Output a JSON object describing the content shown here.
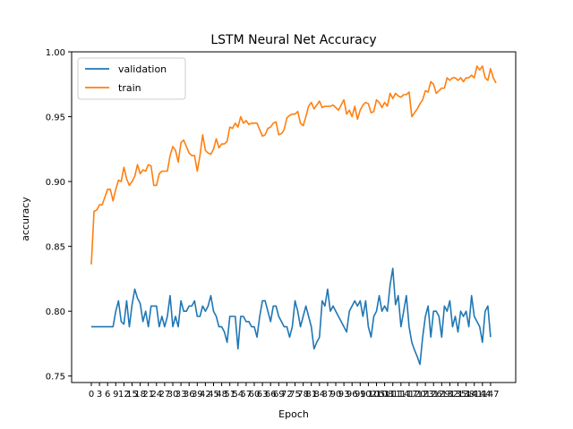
{
  "chart_data": {
    "type": "line",
    "title": "LSTM Neural Net Accuracy",
    "xlabel": "Epoch",
    "ylabel": "accuracy",
    "ylim": [
      0.745,
      1.0
    ],
    "yticks": [
      "0.75",
      "0.80",
      "0.85",
      "0.90",
      "0.95",
      "1.00"
    ],
    "ytick_values": [
      0.75,
      0.8,
      0.85,
      0.9,
      0.95,
      1.0
    ],
    "x_start": 0,
    "x_end": 149,
    "x_tick_step": 3,
    "legend": {
      "position": "top-left"
    },
    "grid": false,
    "series": [
      {
        "name": "validation",
        "color": "#1f77b4",
        "values": [
          0.788,
          0.788,
          0.788,
          0.788,
          0.788,
          0.788,
          0.788,
          0.788,
          0.788,
          0.8,
          0.808,
          0.792,
          0.79,
          0.808,
          0.788,
          0.805,
          0.817,
          0.81,
          0.806,
          0.792,
          0.8,
          0.788,
          0.804,
          0.804,
          0.804,
          0.788,
          0.796,
          0.788,
          0.796,
          0.812,
          0.788,
          0.796,
          0.788,
          0.808,
          0.8,
          0.8,
          0.804,
          0.804,
          0.808,
          0.796,
          0.796,
          0.804,
          0.8,
          0.804,
          0.812,
          0.8,
          0.796,
          0.788,
          0.788,
          0.784,
          0.776,
          0.796,
          0.796,
          0.796,
          0.771,
          0.796,
          0.796,
          0.792,
          0.792,
          0.788,
          0.788,
          0.78,
          0.796,
          0.808,
          0.808,
          0.8,
          0.792,
          0.804,
          0.804,
          0.796,
          0.792,
          0.788,
          0.788,
          0.78,
          0.788,
          0.808,
          0.8,
          0.788,
          0.796,
          0.804,
          0.796,
          0.788,
          0.771,
          0.776,
          0.78,
          0.808,
          0.804,
          0.817,
          0.8,
          0.804,
          0.8,
          0.796,
          0.792,
          0.788,
          0.784,
          0.8,
          0.804,
          0.808,
          0.804,
          0.808,
          0.796,
          0.808,
          0.788,
          0.78,
          0.796,
          0.8,
          0.812,
          0.8,
          0.804,
          0.8,
          0.82,
          0.833,
          0.805,
          0.812,
          0.788,
          0.8,
          0.812,
          0.788,
          0.776,
          0.77,
          0.765,
          0.759,
          0.78,
          0.796,
          0.804,
          0.78,
          0.8,
          0.8,
          0.796,
          0.78,
          0.804,
          0.8,
          0.808,
          0.788,
          0.796,
          0.784,
          0.8,
          0.796,
          0.8,
          0.788,
          0.812,
          0.796,
          0.792,
          0.788,
          0.776,
          0.8,
          0.804,
          0.78
        ],
        "comment_trim": "validation trimmed to match the 150 train points in render script"
      },
      {
        "name": "train",
        "color": "#ff7f0e",
        "values": [
          0.836,
          0.877,
          0.878,
          0.882,
          0.882,
          0.888,
          0.894,
          0.894,
          0.885,
          0.894,
          0.901,
          0.9,
          0.911,
          0.902,
          0.897,
          0.9,
          0.904,
          0.913,
          0.906,
          0.909,
          0.908,
          0.913,
          0.912,
          0.897,
          0.897,
          0.906,
          0.908,
          0.908,
          0.908,
          0.92,
          0.927,
          0.924,
          0.915,
          0.93,
          0.932,
          0.927,
          0.922,
          0.92,
          0.92,
          0.908,
          0.92,
          0.936,
          0.924,
          0.922,
          0.921,
          0.925,
          0.933,
          0.926,
          0.929,
          0.929,
          0.931,
          0.942,
          0.941,
          0.945,
          0.942,
          0.95,
          0.945,
          0.947,
          0.944,
          0.945,
          0.945,
          0.945,
          0.94,
          0.935,
          0.936,
          0.941,
          0.942,
          0.945,
          0.946,
          0.936,
          0.937,
          0.94,
          0.949,
          0.951,
          0.952,
          0.952,
          0.954,
          0.945,
          0.943,
          0.95,
          0.958,
          0.961,
          0.956,
          0.959,
          0.962,
          0.957,
          0.958,
          0.958,
          0.958,
          0.959,
          0.957,
          0.955,
          0.959,
          0.963,
          0.952,
          0.955,
          0.95,
          0.958,
          0.948,
          0.955,
          0.959,
          0.961,
          0.96,
          0.953,
          0.954,
          0.963,
          0.961,
          0.957,
          0.961,
          0.958,
          0.968,
          0.964,
          0.968,
          0.966,
          0.965,
          0.967,
          0.967,
          0.969,
          0.95,
          0.953,
          0.956,
          0.96,
          0.963,
          0.97,
          0.969,
          0.977,
          0.975,
          0.968,
          0.97,
          0.972,
          0.972,
          0.98,
          0.978,
          0.98,
          0.98,
          0.978,
          0.98,
          0.977,
          0.98,
          0.98,
          0.982,
          0.98,
          0.989,
          0.986,
          0.989,
          0.98,
          0.978,
          0.987,
          0.98,
          0.976
        ]
      }
    ]
  }
}
